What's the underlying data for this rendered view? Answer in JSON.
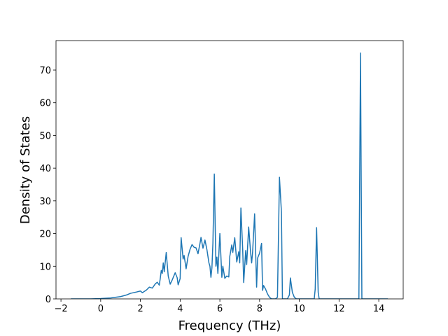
{
  "chart_data": {
    "type": "line",
    "xlabel": "Frequency (THz)",
    "ylabel": "Density of States",
    "color": "#1f77b4",
    "x": [
      -1.5,
      -1,
      -0.5,
      0,
      0.5,
      1.0,
      1.3,
      1.5,
      1.8,
      2.0,
      2.1,
      2.3,
      2.45,
      2.6,
      2.75,
      2.85,
      2.95,
      3.0,
      3.05,
      3.1,
      3.15,
      3.2,
      3.3,
      3.4,
      3.5,
      3.6,
      3.75,
      3.85,
      3.9,
      4.0,
      4.05,
      4.15,
      4.2,
      4.3,
      4.4,
      4.5,
      4.6,
      4.7,
      4.8,
      4.9,
      5.0,
      5.05,
      5.15,
      5.25,
      5.35,
      5.45,
      5.5,
      5.55,
      5.6,
      5.65,
      5.72,
      5.8,
      5.85,
      5.9,
      6.0,
      6.1,
      6.15,
      6.25,
      6.35,
      6.45,
      6.5,
      6.6,
      6.65,
      6.75,
      6.85,
      6.95,
      7.0,
      7.06,
      7.15,
      7.2,
      7.3,
      7.35,
      7.45,
      7.55,
      7.6,
      7.65,
      7.75,
      7.85,
      7.9,
      8.0,
      8.1,
      8.15,
      8.2,
      8.3,
      8.4,
      8.5,
      8.6,
      8.8,
      8.9,
      9.0,
      9.1,
      9.15,
      9.4,
      9.5,
      9.55,
      9.65,
      9.75,
      9.85,
      10.75,
      10.8,
      10.87,
      10.95,
      11.0,
      13.0,
      13.08,
      13.15,
      14.46
    ],
    "values": [
      0,
      0,
      0,
      0.1,
      0.3,
      0.7,
      1.2,
      1.7,
      2.1,
      2.4,
      1.9,
      2.7,
      3.6,
      3.3,
      4.6,
      5.1,
      4.2,
      6.3,
      8.7,
      7.8,
      11,
      8.3,
      14.2,
      7,
      4.5,
      5.8,
      8,
      6.5,
      4.3,
      6.2,
      18.7,
      12.2,
      13.3,
      9.2,
      13,
      15.2,
      16.6,
      15.8,
      15.6,
      13.8,
      17,
      18.8,
      15.5,
      18,
      15,
      11,
      10,
      6.6,
      9.5,
      17,
      38.2,
      10,
      12.8,
      7.8,
      20,
      6.6,
      10,
      6.3,
      7,
      6.7,
      13,
      16.5,
      14.2,
      18.7,
      11.3,
      14.4,
      11,
      27.8,
      15,
      5,
      14.8,
      10.5,
      22,
      14,
      11,
      14.5,
      26,
      3.6,
      12.5,
      14,
      17,
      2.6,
      4.1,
      3,
      1.5,
      0.5,
      0,
      0,
      0.5,
      37.2,
      26.5,
      0,
      0,
      1.2,
      6.4,
      2,
      0.5,
      0,
      0,
      3,
      21.8,
      2,
      0,
      0,
      75.2,
      0,
      0
    ],
    "xlim": [
      -2.25,
      15.23
    ],
    "ylim": [
      0,
      79
    ],
    "xticks": [
      {
        "value": -2,
        "label": "−2"
      },
      0,
      2,
      4,
      6,
      8,
      10,
      12,
      14
    ],
    "yticks": [
      0,
      10,
      20,
      30,
      40,
      50,
      60,
      70
    ]
  }
}
